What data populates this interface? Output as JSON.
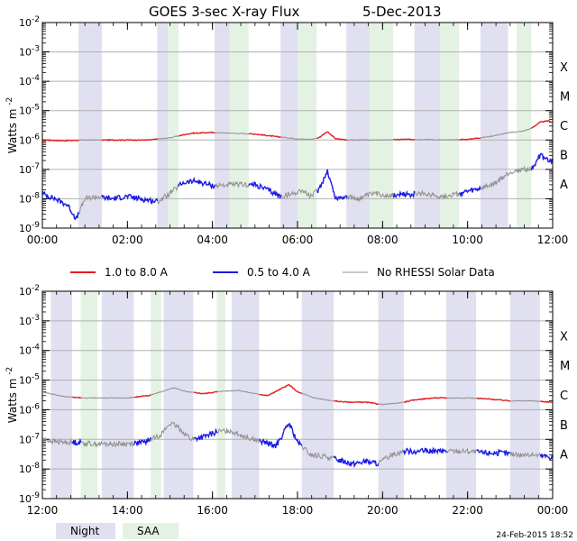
{
  "chart_data": [
    {
      "type": "line",
      "title": "GOES 3-sec X-ray Flux",
      "date": "5-Dec-2013",
      "ylabel": "Watts m",
      "ylabel_sup": "-2",
      "yscale": "log",
      "ylim_exponent": [
        -9,
        -2
      ],
      "ytick_exponents": [
        -9,
        -8,
        -7,
        -6,
        -5,
        -4,
        -3,
        -2
      ],
      "flare_classes": [
        "A",
        "B",
        "C",
        "M",
        "X"
      ],
      "xlim_hours": [
        0,
        12
      ],
      "xtick_labels": [
        "00:00",
        "02:00",
        "04:00",
        "06:00",
        "08:00",
        "10:00",
        "12:00"
      ],
      "night_bands": [
        [
          0.85,
          1.4
        ],
        [
          2.7,
          2.95
        ],
        [
          4.05,
          4.4
        ],
        [
          5.6,
          6.0
        ],
        [
          7.15,
          7.7
        ],
        [
          8.75,
          9.35
        ],
        [
          10.3,
          10.95
        ]
      ],
      "saa_bands": [
        [
          2.95,
          3.2
        ],
        [
          4.4,
          4.85
        ],
        [
          6.0,
          6.45
        ],
        [
          7.7,
          8.25
        ],
        [
          9.35,
          9.8
        ],
        [
          11.15,
          11.5
        ]
      ],
      "series": [
        {
          "name": "1.0 to 8.0 A",
          "color": "#e02020",
          "x": [
            0,
            0.5,
            1.0,
            1.5,
            2.0,
            2.5,
            3.0,
            3.5,
            4.0,
            4.5,
            5.0,
            5.5,
            6.0,
            6.3,
            6.5,
            6.7,
            6.9,
            7.2,
            7.5,
            8.0,
            8.5,
            9.0,
            9.5,
            10.0,
            10.5,
            11.0,
            11.3,
            11.5,
            11.7,
            11.9,
            12.0
          ],
          "y": [
            1e-06,
            9.5e-07,
            1e-06,
            1e-06,
            1e-06,
            1e-06,
            1.2e-06,
            1.7e-06,
            1.8e-06,
            1.7e-06,
            1.6e-06,
            1.3e-06,
            1.1e-06,
            1.05e-06,
            1.2e-06,
            1.9e-06,
            1.1e-06,
            1e-06,
            1e-06,
            1e-06,
            1.05e-06,
            1.05e-06,
            1e-06,
            1.05e-06,
            1.3e-06,
            1.8e-06,
            2e-06,
            2.5e-06,
            4e-06,
            4.5e-06,
            4e-06
          ]
        },
        {
          "name": "0.5 to 4.0 A",
          "color": "#1a1ae6",
          "x": [
            0,
            0.3,
            0.6,
            0.8,
            1.0,
            1.3,
            1.6,
            2.0,
            2.3,
            2.7,
            3.0,
            3.3,
            3.6,
            4.0,
            4.5,
            5.0,
            5.3,
            5.6,
            5.9,
            6.1,
            6.3,
            6.5,
            6.7,
            6.9,
            7.1,
            7.4,
            7.8,
            8.2,
            8.6,
            9.0,
            9.4,
            9.8,
            10.2,
            10.6,
            11.0,
            11.3,
            11.5,
            11.7,
            11.9,
            12.0
          ],
          "y": [
            1.5e-08,
            1e-08,
            6e-09,
            2e-09,
            1e-08,
            1.2e-08,
            1e-08,
            1.2e-08,
            1e-08,
            8e-09,
            1.5e-08,
            3.5e-08,
            4e-08,
            2.8e-08,
            3e-08,
            3e-08,
            2e-08,
            1.2e-08,
            1.5e-08,
            2e-08,
            1.2e-08,
            2e-08,
            9e-08,
            1e-08,
            1.2e-08,
            1e-08,
            1.5e-08,
            1.3e-08,
            1.4e-08,
            1.5e-08,
            1.2e-08,
            1.5e-08,
            2e-08,
            3e-08,
            8e-08,
            1e-07,
            1e-07,
            3e-07,
            2e-07,
            1.8e-07
          ]
        },
        {
          "name": "No RHESSI Solar Data",
          "color": "#909090",
          "segments_hours": [
            [
              0.85,
              1.4
            ],
            [
              2.7,
              3.2
            ],
            [
              4.05,
              4.85
            ],
            [
              5.6,
              6.45
            ],
            [
              7.15,
              8.25
            ],
            [
              8.75,
              9.8
            ],
            [
              10.3,
              11.5
            ]
          ]
        }
      ]
    },
    {
      "type": "line",
      "ylabel": "Watts m",
      "ylabel_sup": "-2",
      "yscale": "log",
      "ylim_exponent": [
        -9,
        -2
      ],
      "ytick_exponents": [
        -9,
        -8,
        -7,
        -6,
        -5,
        -4,
        -3,
        -2
      ],
      "flare_classes": [
        "A",
        "B",
        "C",
        "M",
        "X"
      ],
      "xlim_hours": [
        12,
        24
      ],
      "xtick_labels": [
        "12:00",
        "14:00",
        "16:00",
        "18:00",
        "20:00",
        "22:00",
        "00:00"
      ],
      "night_bands": [
        [
          12.2,
          12.7
        ],
        [
          13.4,
          14.15
        ],
        [
          14.85,
          15.55
        ],
        [
          16.45,
          17.1
        ],
        [
          18.1,
          18.85
        ],
        [
          19.9,
          20.5
        ],
        [
          21.5,
          22.2
        ],
        [
          23.0,
          23.7
        ]
      ],
      "saa_bands": [
        [
          12.9,
          13.3
        ],
        [
          14.55,
          14.8
        ],
        [
          16.1,
          16.3
        ]
      ],
      "series": [
        {
          "name": "1.0 to 8.0 A",
          "color": "#e02020",
          "x": [
            12.0,
            12.5,
            13.0,
            13.5,
            14.0,
            14.5,
            14.9,
            15.1,
            15.4,
            15.8,
            16.2,
            16.6,
            17.0,
            17.3,
            17.6,
            17.8,
            18.0,
            18.4,
            18.8,
            19.2,
            19.6,
            20.0,
            20.4,
            20.8,
            21.2,
            21.6,
            22.0,
            22.5,
            23.0,
            23.5,
            24.0
          ],
          "y": [
            4e-06,
            2.8e-06,
            2.5e-06,
            2.5e-06,
            2.5e-06,
            3e-06,
            4.5e-06,
            5.5e-06,
            4e-06,
            3.5e-06,
            4.2e-06,
            4.5e-06,
            3.5e-06,
            3e-06,
            5e-06,
            7e-06,
            4e-06,
            2.5e-06,
            2e-06,
            1.8e-06,
            1.8e-06,
            1.5e-06,
            1.7e-06,
            2.2e-06,
            2.5e-06,
            2.5e-06,
            2.5e-06,
            2.3e-06,
            2e-06,
            2e-06,
            1.8e-06
          ]
        },
        {
          "name": "0.5 to 4.0 A",
          "color": "#1a1ae6",
          "x": [
            12.0,
            12.4,
            12.8,
            13.2,
            13.6,
            14.0,
            14.4,
            14.8,
            15.0,
            15.2,
            15.5,
            15.8,
            16.1,
            16.4,
            16.8,
            17.2,
            17.5,
            17.8,
            18.0,
            18.3,
            18.7,
            19.0,
            19.3,
            19.6,
            19.9,
            20.2,
            20.5,
            20.8,
            21.2,
            21.6,
            22.0,
            22.4,
            22.8,
            23.2,
            23.6,
            24.0
          ],
          "y": [
            1e-07,
            8e-08,
            8e-08,
            7e-08,
            7e-08,
            7e-08,
            8e-08,
            1.5e-07,
            3.5e-07,
            2.5e-07,
            1e-07,
            1.2e-07,
            1.8e-07,
            2e-07,
            1.2e-07,
            8e-08,
            6e-08,
            3.5e-07,
            8e-08,
            3e-08,
            2.5e-08,
            2e-08,
            1.5e-08,
            1.8e-08,
            1.5e-08,
            3e-08,
            4e-08,
            4e-08,
            4e-08,
            4e-08,
            4e-08,
            3.5e-08,
            3.5e-08,
            3e-08,
            3e-08,
            2.5e-08
          ]
        },
        {
          "name": "No RHESSI Solar Data",
          "color": "#909090",
          "segments_hours": [
            [
              12.0,
              12.7
            ],
            [
              12.9,
              14.15
            ],
            [
              14.55,
              15.55
            ],
            [
              16.1,
              17.1
            ],
            [
              18.1,
              18.85
            ],
            [
              19.9,
              20.5
            ],
            [
              21.5,
              22.2
            ],
            [
              23.0,
              23.7
            ]
          ]
        }
      ]
    }
  ],
  "legend": {
    "items": [
      {
        "label": "1.0 to 8.0 A",
        "color": "#e02020"
      },
      {
        "label": "0.5 to 4.0 A",
        "color": "#1a1ae6"
      },
      {
        "label": "No RHESSI Solar Data",
        "color": "#909090"
      }
    ]
  },
  "band_legend": {
    "night_label": "Night",
    "night_color": "#e0e0f0",
    "saa_label": "SAA",
    "saa_color": "#e4f2e4"
  },
  "footer": {
    "timestamp": "24-Feb-2015 18:52"
  }
}
